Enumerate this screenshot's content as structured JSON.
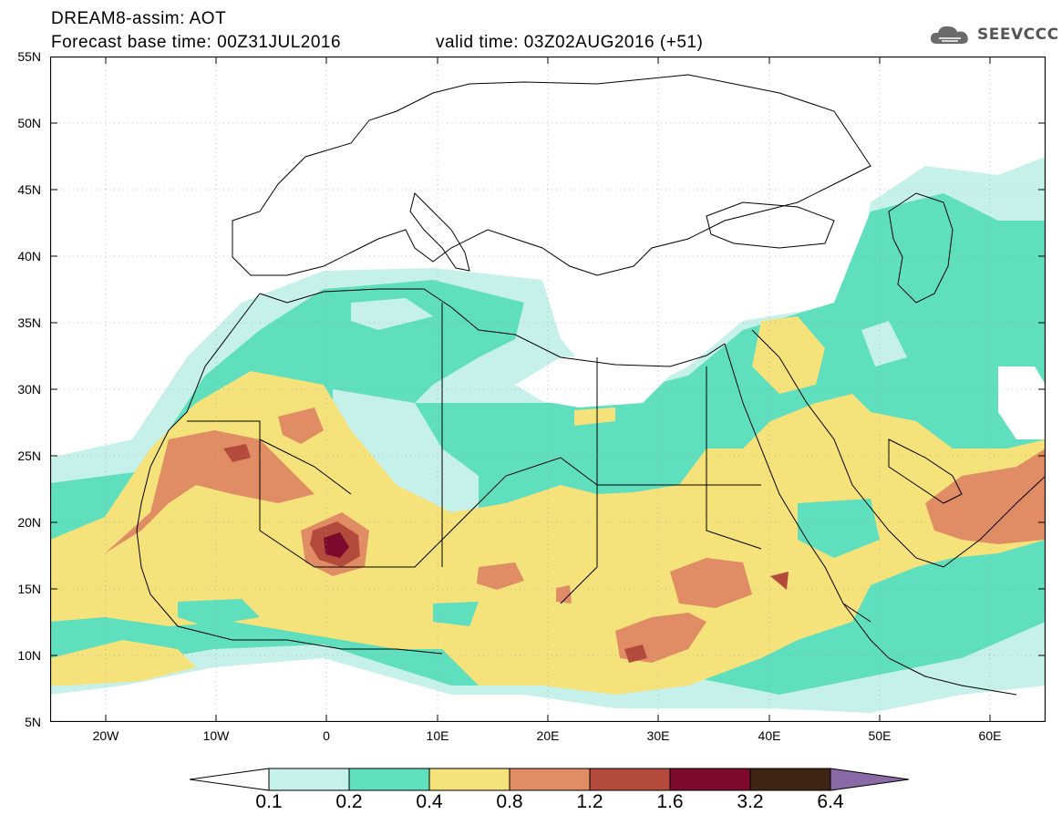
{
  "header": {
    "line1": "DREAM8-assim: AOT",
    "line2": "Forecast base time: 00Z31JUL2016",
    "valid": "valid time: 03Z02AUG2016 (+51)",
    "logo_text": "SEEVCCC",
    "logo_icon": "cloud-icon"
  },
  "axes": {
    "lat_labels": [
      "55N",
      "50N",
      "45N",
      "40N",
      "35N",
      "30N",
      "25N",
      "20N",
      "15N",
      "10N",
      "5N"
    ],
    "lon_labels": [
      "20W",
      "10W",
      "0",
      "10E",
      "20E",
      "30E",
      "40E",
      "50E",
      "60E"
    ],
    "lat_range": [
      5,
      55
    ],
    "lon_range": [
      -25,
      65
    ]
  },
  "legend": {
    "labels": [
      "0.1",
      "0.2",
      "0.4",
      "0.8",
      "1.2",
      "1.6",
      "3.2",
      "6.4"
    ],
    "colors": [
      "#ffffff",
      "#c6f0ea",
      "#5fdfbd",
      "#f5e27a",
      "#e08c64",
      "#b34a3b",
      "#7d0a2c",
      "#3e2414",
      "#8a6aa6"
    ]
  },
  "colors": {
    "aot_0_1": "#c6f0ea",
    "aot_0_2": "#5fdfbd",
    "aot_0_4": "#f5e27a",
    "aot_0_8": "#e08c64",
    "aot_1_2": "#b34a3b",
    "aot_1_6": "#7d0a2c"
  }
}
